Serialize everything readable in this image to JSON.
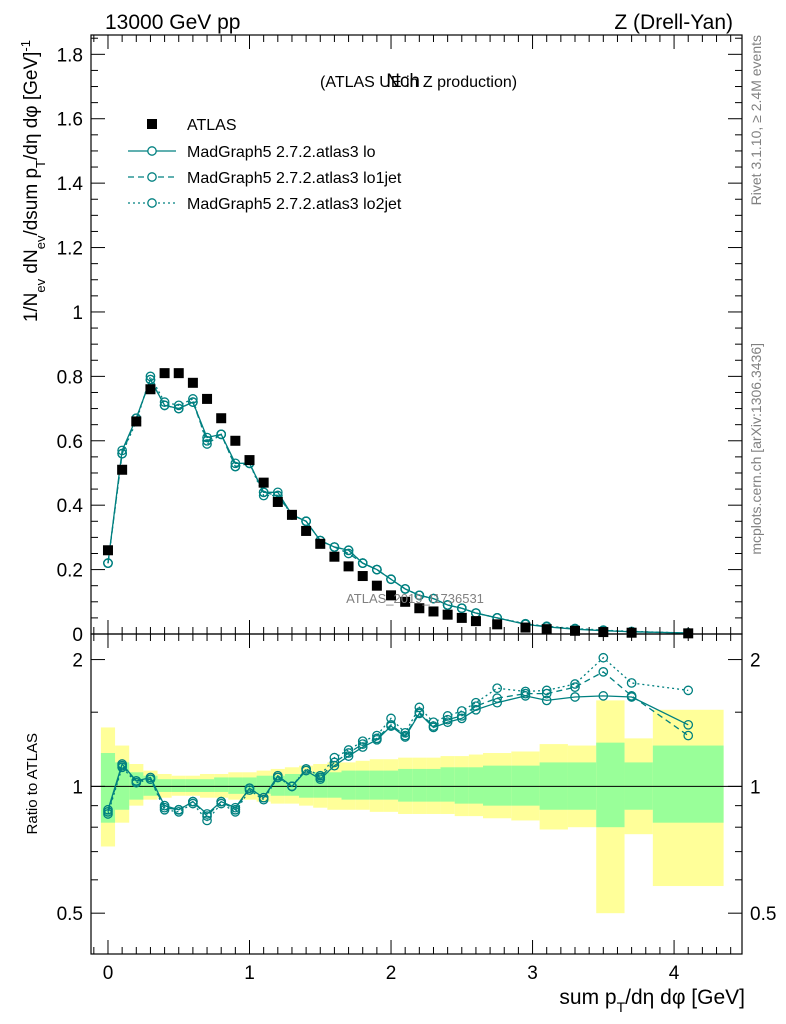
{
  "header": {
    "left": "13000 GeV pp",
    "right": "Z (Drell-Yan)"
  },
  "side_text": {
    "upper": "Rivet 3.1.10, ≥ 2.4M events",
    "lower": "mcplots.cern.ch [arXiv:1306.3436]"
  },
  "colors": {
    "mc": "#008080",
    "data": "#000000",
    "band_inner": "#99ff99",
    "band_outer": "#ffff99"
  },
  "chart_data": [
    {
      "type": "scatter",
      "title": "Nch",
      "subtitle": "(ATLAS UE in Z production)",
      "watermark": "ATLAS_2019_I1736531",
      "ylabel": "1/N_ev dN_ev/dsum p_T/dη dφ [GeV]^-1",
      "ylim": [
        0,
        1.86
      ],
      "xlim": [
        -0.12,
        4.48
      ],
      "y_ticks": [
        "0",
        "0.2",
        "0.4",
        "0.6",
        "0.8",
        "1",
        "1.2",
        "1.4",
        "1.6",
        "1.8"
      ],
      "legend_position": "top-left",
      "legend": [
        "ATLAS",
        "MadGraph5 2.7.2.atlas3 lo",
        "MadGraph5 2.7.2.atlas3 lo1jet",
        "MadGraph5 2.7.2.atlas3 lo2jet"
      ],
      "x": [
        0.0,
        0.1,
        0.2,
        0.3,
        0.4,
        0.5,
        0.6,
        0.7,
        0.8,
        0.9,
        1.0,
        1.1,
        1.2,
        1.3,
        1.4,
        1.5,
        1.6,
        1.7,
        1.8,
        1.9,
        2.0,
        2.1,
        2.2,
        2.3,
        2.4,
        2.5,
        2.6,
        2.75,
        2.95,
        3.1,
        3.3,
        3.5,
        3.7,
        4.1
      ],
      "series": [
        {
          "name": "ATLAS",
          "values": [
            0.26,
            0.51,
            0.66,
            0.76,
            0.81,
            0.81,
            0.78,
            0.73,
            0.67,
            0.6,
            0.54,
            0.47,
            0.41,
            0.37,
            0.32,
            0.28,
            0.24,
            0.21,
            0.18,
            0.15,
            0.12,
            0.1,
            0.08,
            0.07,
            0.06,
            0.05,
            0.04,
            0.03,
            0.02,
            0.015,
            0.01,
            0.006,
            0.004,
            0.002
          ]
        },
        {
          "name": "MadGraph5 2.7.2.atlas3 lo",
          "values": [
            0.22,
            0.57,
            0.67,
            0.79,
            0.71,
            0.7,
            0.72,
            0.61,
            0.62,
            0.53,
            0.53,
            0.44,
            0.44,
            0.37,
            0.35,
            0.29,
            0.27,
            0.26,
            0.22,
            0.2,
            0.17,
            0.14,
            0.12,
            0.11,
            0.09,
            0.08,
            0.065,
            0.05,
            0.03,
            0.022,
            0.015,
            0.01,
            0.007,
            0.003
          ]
        },
        {
          "name": "MadGraph5 2.7.2.atlas3 lo1jet",
          "values": [
            0.22,
            0.56,
            0.67,
            0.79,
            0.71,
            0.7,
            0.72,
            0.6,
            0.62,
            0.52,
            0.53,
            0.44,
            0.43,
            0.37,
            0.35,
            0.29,
            0.27,
            0.25,
            0.22,
            0.2,
            0.17,
            0.14,
            0.12,
            0.11,
            0.09,
            0.08,
            0.065,
            0.05,
            0.031,
            0.023,
            0.016,
            0.011,
            0.007,
            0.003
          ]
        },
        {
          "name": "MadGraph5 2.7.2.atlas3 lo2jet",
          "values": [
            0.22,
            0.56,
            0.66,
            0.8,
            0.72,
            0.71,
            0.73,
            0.59,
            0.62,
            0.52,
            0.53,
            0.43,
            0.43,
            0.37,
            0.35,
            0.29,
            0.27,
            0.26,
            0.22,
            0.2,
            0.17,
            0.14,
            0.12,
            0.11,
            0.09,
            0.08,
            0.065,
            0.05,
            0.032,
            0.024,
            0.017,
            0.012,
            0.008,
            0.003
          ]
        }
      ]
    },
    {
      "type": "scatter",
      "ylabel": "Ratio to ATLAS",
      "xlabel": "sum p_T/dη dφ [GeV]",
      "scale": "log",
      "ylim": [
        0.4,
        2.3
      ],
      "xlim": [
        -0.12,
        4.48
      ],
      "x_ticks": [
        "0",
        "1",
        "2",
        "3",
        "4"
      ],
      "y_ticks": [
        "0.5",
        "1",
        "2"
      ],
      "x": [
        0.0,
        0.1,
        0.2,
        0.3,
        0.4,
        0.5,
        0.6,
        0.7,
        0.8,
        0.9,
        1.0,
        1.1,
        1.2,
        1.3,
        1.4,
        1.5,
        1.6,
        1.7,
        1.8,
        1.9,
        2.0,
        2.1,
        2.2,
        2.3,
        2.4,
        2.5,
        2.6,
        2.75,
        2.95,
        3.1,
        3.3,
        3.5,
        3.7,
        4.1
      ],
      "band_edges": [
        -0.05,
        0.05,
        0.15,
        0.25,
        0.35,
        0.45,
        0.55,
        0.65,
        0.75,
        0.85,
        0.95,
        1.05,
        1.15,
        1.25,
        1.35,
        1.45,
        1.55,
        1.65,
        1.75,
        1.85,
        1.95,
        2.05,
        2.15,
        2.25,
        2.35,
        2.45,
        2.55,
        2.65,
        2.85,
        3.05,
        3.25,
        3.45,
        3.65,
        3.85,
        4.35
      ],
      "band_inner": [
        [
          0.82,
          1.2
        ],
        [
          0.88,
          1.14
        ],
        [
          0.93,
          1.08
        ],
        [
          0.95,
          1.06
        ],
        [
          0.97,
          1.04
        ],
        [
          0.97,
          1.04
        ],
        [
          0.97,
          1.04
        ],
        [
          0.97,
          1.04
        ],
        [
          0.97,
          1.05
        ],
        [
          0.96,
          1.05
        ],
        [
          0.96,
          1.05
        ],
        [
          0.96,
          1.06
        ],
        [
          0.95,
          1.06
        ],
        [
          0.95,
          1.07
        ],
        [
          0.94,
          1.07
        ],
        [
          0.94,
          1.08
        ],
        [
          0.94,
          1.08
        ],
        [
          0.93,
          1.09
        ],
        [
          0.93,
          1.09
        ],
        [
          0.93,
          1.09
        ],
        [
          0.93,
          1.09
        ],
        [
          0.92,
          1.1
        ],
        [
          0.92,
          1.1
        ],
        [
          0.92,
          1.1
        ],
        [
          0.92,
          1.11
        ],
        [
          0.91,
          1.11
        ],
        [
          0.91,
          1.11
        ],
        [
          0.9,
          1.12
        ],
        [
          0.9,
          1.12
        ],
        [
          0.88,
          1.14
        ],
        [
          0.88,
          1.14
        ],
        [
          0.8,
          1.27
        ],
        [
          0.88,
          1.14
        ],
        [
          0.82,
          1.25
        ]
      ],
      "band_outer": [
        [
          0.72,
          1.38
        ],
        [
          0.82,
          1.25
        ],
        [
          0.9,
          1.13
        ],
        [
          0.93,
          1.09
        ],
        [
          0.94,
          1.07
        ],
        [
          0.95,
          1.06
        ],
        [
          0.95,
          1.06
        ],
        [
          0.94,
          1.07
        ],
        [
          0.94,
          1.07
        ],
        [
          0.93,
          1.08
        ],
        [
          0.93,
          1.08
        ],
        [
          0.92,
          1.09
        ],
        [
          0.91,
          1.1
        ],
        [
          0.91,
          1.11
        ],
        [
          0.9,
          1.12
        ],
        [
          0.89,
          1.13
        ],
        [
          0.88,
          1.14
        ],
        [
          0.88,
          1.14
        ],
        [
          0.88,
          1.15
        ],
        [
          0.87,
          1.16
        ],
        [
          0.87,
          1.16
        ],
        [
          0.86,
          1.17
        ],
        [
          0.86,
          1.17
        ],
        [
          0.86,
          1.17
        ],
        [
          0.86,
          1.18
        ],
        [
          0.85,
          1.18
        ],
        [
          0.85,
          1.19
        ],
        [
          0.84,
          1.2
        ],
        [
          0.83,
          1.21
        ],
        [
          0.79,
          1.26
        ],
        [
          0.8,
          1.25
        ],
        [
          0.5,
          1.6
        ],
        [
          0.77,
          1.3
        ],
        [
          0.58,
          1.52
        ]
      ],
      "series": [
        {
          "name": "MadGraph5 2.7.2.atlas3 lo",
          "values": [
            0.88,
            1.13,
            1.03,
            1.05,
            0.9,
            0.88,
            0.92,
            0.86,
            0.92,
            0.89,
            0.99,
            0.94,
            1.06,
            1.0,
            1.09,
            1.04,
            1.12,
            1.18,
            1.24,
            1.29,
            1.39,
            1.31,
            1.49,
            1.38,
            1.42,
            1.45,
            1.52,
            1.58,
            1.64,
            1.6,
            1.63,
            1.64,
            1.63,
            1.4
          ]
        },
        {
          "name": "MadGraph5 2.7.2.atlas3 lo1jet",
          "values": [
            0.87,
            1.12,
            1.03,
            1.04,
            0.89,
            0.88,
            0.92,
            0.85,
            0.92,
            0.88,
            0.99,
            0.94,
            1.05,
            1.0,
            1.1,
            1.05,
            1.14,
            1.2,
            1.26,
            1.3,
            1.4,
            1.32,
            1.5,
            1.39,
            1.44,
            1.47,
            1.55,
            1.62,
            1.66,
            1.66,
            1.72,
            1.87,
            1.64,
            1.32
          ]
        },
        {
          "name": "MadGraph5 2.7.2.atlas3 lo2jet",
          "values": [
            0.86,
            1.11,
            1.02,
            1.04,
            0.88,
            0.87,
            0.91,
            0.83,
            0.91,
            0.87,
            0.98,
            0.93,
            1.05,
            1.0,
            1.1,
            1.06,
            1.17,
            1.22,
            1.28,
            1.32,
            1.45,
            1.34,
            1.54,
            1.42,
            1.47,
            1.51,
            1.58,
            1.71,
            1.68,
            1.69,
            1.75,
            2.02,
            1.76,
            1.69
          ]
        }
      ]
    }
  ]
}
